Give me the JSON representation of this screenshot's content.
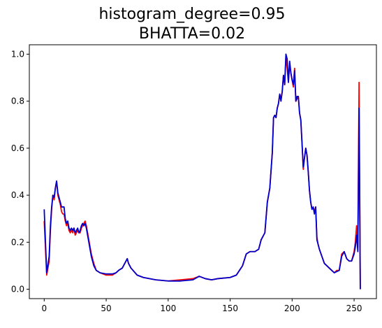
{
  "chart_data": {
    "type": "line",
    "title_lines": [
      "histogram_degree=0.95",
      "BHATTA=0.02"
    ],
    "xlabel": "",
    "ylabel": "",
    "xlim": [
      -12,
      268
    ],
    "ylim": [
      -0.04,
      1.04
    ],
    "x_ticks": [
      0,
      50,
      100,
      150,
      200,
      250
    ],
    "y_ticks": [
      0.0,
      0.2,
      0.4,
      0.6,
      0.8,
      1.0
    ],
    "x_tick_labels": [
      "0",
      "50",
      "100",
      "150",
      "200",
      "250"
    ],
    "y_tick_labels": [
      "0.0",
      "0.2",
      "0.4",
      "0.6",
      "0.8",
      "1.0"
    ],
    "grid": false,
    "legend": "none",
    "series": [
      {
        "color": "#ff0000",
        "points": [
          [
            0,
            0.29
          ],
          [
            2,
            0.06
          ],
          [
            4,
            0.12
          ],
          [
            5,
            0.25
          ],
          [
            6,
            0.34
          ],
          [
            7,
            0.4
          ],
          [
            8,
            0.38
          ],
          [
            9,
            0.43
          ],
          [
            10,
            0.46
          ],
          [
            11,
            0.4
          ],
          [
            12,
            0.38
          ],
          [
            13,
            0.36
          ],
          [
            14,
            0.33
          ],
          [
            15,
            0.32
          ],
          [
            16,
            0.32
          ],
          [
            17,
            0.29
          ],
          [
            18,
            0.27
          ],
          [
            19,
            0.28
          ],
          [
            20,
            0.25
          ],
          [
            21,
            0.24
          ],
          [
            22,
            0.25
          ],
          [
            23,
            0.24
          ],
          [
            24,
            0.26
          ],
          [
            25,
            0.23
          ],
          [
            26,
            0.24
          ],
          [
            27,
            0.25
          ],
          [
            28,
            0.24
          ],
          [
            29,
            0.24
          ],
          [
            30,
            0.26
          ],
          [
            31,
            0.27
          ],
          [
            32,
            0.28
          ],
          [
            33,
            0.29
          ],
          [
            34,
            0.27
          ],
          [
            35,
            0.24
          ],
          [
            36,
            0.21
          ],
          [
            37,
            0.18
          ],
          [
            38,
            0.15
          ],
          [
            40,
            0.11
          ],
          [
            42,
            0.08
          ],
          [
            45,
            0.07
          ],
          [
            50,
            0.06
          ],
          [
            55,
            0.06
          ],
          [
            58,
            0.07
          ],
          [
            60,
            0.08
          ],
          [
            63,
            0.09
          ],
          [
            65,
            0.11
          ],
          [
            67,
            0.13
          ],
          [
            68,
            0.11
          ],
          [
            70,
            0.09
          ],
          [
            75,
            0.06
          ],
          [
            80,
            0.05
          ],
          [
            90,
            0.04
          ],
          [
            100,
            0.035
          ],
          [
            110,
            0.04
          ],
          [
            120,
            0.045
          ],
          [
            125,
            0.055
          ],
          [
            130,
            0.045
          ],
          [
            135,
            0.04
          ],
          [
            140,
            0.045
          ],
          [
            150,
            0.05
          ],
          [
            155,
            0.06
          ],
          [
            160,
            0.1
          ],
          [
            163,
            0.15
          ],
          [
            166,
            0.16
          ],
          [
            170,
            0.16
          ],
          [
            173,
            0.17
          ],
          [
            175,
            0.21
          ],
          [
            178,
            0.24
          ],
          [
            180,
            0.37
          ],
          [
            182,
            0.43
          ],
          [
            184,
            0.58
          ],
          [
            185,
            0.73
          ],
          [
            186,
            0.74
          ],
          [
            187,
            0.73
          ],
          [
            188,
            0.77
          ],
          [
            189,
            0.79
          ],
          [
            190,
            0.83
          ],
          [
            191,
            0.81
          ],
          [
            192,
            0.84
          ],
          [
            193,
            0.91
          ],
          [
            194,
            0.87
          ],
          [
            195,
            0.99
          ],
          [
            196,
            0.94
          ],
          [
            197,
            0.88
          ],
          [
            198,
            0.96
          ],
          [
            199,
            0.92
          ],
          [
            200,
            0.89
          ],
          [
            201,
            0.86
          ],
          [
            202,
            0.94
          ],
          [
            203,
            0.8
          ],
          [
            204,
            0.81
          ],
          [
            205,
            0.82
          ],
          [
            206,
            0.75
          ],
          [
            207,
            0.72
          ],
          [
            208,
            0.62
          ],
          [
            209,
            0.51
          ],
          [
            210,
            0.56
          ],
          [
            211,
            0.6
          ],
          [
            212,
            0.57
          ],
          [
            213,
            0.5
          ],
          [
            214,
            0.42
          ],
          [
            215,
            0.37
          ],
          [
            216,
            0.34
          ],
          [
            217,
            0.35
          ],
          [
            218,
            0.33
          ],
          [
            219,
            0.35
          ],
          [
            220,
            0.22
          ],
          [
            221,
            0.19
          ],
          [
            222,
            0.17
          ],
          [
            224,
            0.14
          ],
          [
            226,
            0.11
          ],
          [
            228,
            0.1
          ],
          [
            230,
            0.09
          ],
          [
            232,
            0.08
          ],
          [
            234,
            0.07
          ],
          [
            236,
            0.08
          ],
          [
            238,
            0.08
          ],
          [
            240,
            0.15
          ],
          [
            242,
            0.16
          ],
          [
            244,
            0.13
          ],
          [
            246,
            0.12
          ],
          [
            248,
            0.12
          ],
          [
            250,
            0.16
          ],
          [
            251,
            0.2
          ],
          [
            252,
            0.27
          ],
          [
            253,
            0.18
          ],
          [
            254,
            0.88
          ],
          [
            255,
            0.0
          ]
        ]
      },
      {
        "color": "#0000cc",
        "points": [
          [
            0,
            0.34
          ],
          [
            2,
            0.07
          ],
          [
            4,
            0.14
          ],
          [
            5,
            0.27
          ],
          [
            6,
            0.35
          ],
          [
            7,
            0.4
          ],
          [
            8,
            0.39
          ],
          [
            9,
            0.43
          ],
          [
            10,
            0.46
          ],
          [
            11,
            0.41
          ],
          [
            12,
            0.39
          ],
          [
            13,
            0.37
          ],
          [
            14,
            0.35
          ],
          [
            15,
            0.35
          ],
          [
            16,
            0.35
          ],
          [
            17,
            0.3
          ],
          [
            18,
            0.28
          ],
          [
            19,
            0.29
          ],
          [
            20,
            0.26
          ],
          [
            21,
            0.25
          ],
          [
            22,
            0.26
          ],
          [
            23,
            0.25
          ],
          [
            24,
            0.26
          ],
          [
            25,
            0.24
          ],
          [
            26,
            0.25
          ],
          [
            27,
            0.26
          ],
          [
            28,
            0.24
          ],
          [
            29,
            0.25
          ],
          [
            30,
            0.27
          ],
          [
            31,
            0.28
          ],
          [
            32,
            0.27
          ],
          [
            33,
            0.28
          ],
          [
            34,
            0.26
          ],
          [
            35,
            0.23
          ],
          [
            36,
            0.2
          ],
          [
            37,
            0.17
          ],
          [
            38,
            0.14
          ],
          [
            40,
            0.1
          ],
          [
            42,
            0.08
          ],
          [
            45,
            0.07
          ],
          [
            50,
            0.065
          ],
          [
            55,
            0.065
          ],
          [
            58,
            0.07
          ],
          [
            60,
            0.08
          ],
          [
            63,
            0.09
          ],
          [
            65,
            0.11
          ],
          [
            67,
            0.13
          ],
          [
            68,
            0.11
          ],
          [
            70,
            0.09
          ],
          [
            75,
            0.06
          ],
          [
            80,
            0.05
          ],
          [
            90,
            0.04
          ],
          [
            100,
            0.035
          ],
          [
            110,
            0.035
          ],
          [
            120,
            0.04
          ],
          [
            125,
            0.055
          ],
          [
            130,
            0.045
          ],
          [
            135,
            0.04
          ],
          [
            140,
            0.045
          ],
          [
            150,
            0.05
          ],
          [
            155,
            0.06
          ],
          [
            160,
            0.1
          ],
          [
            163,
            0.15
          ],
          [
            166,
            0.16
          ],
          [
            170,
            0.16
          ],
          [
            173,
            0.17
          ],
          [
            175,
            0.21
          ],
          [
            178,
            0.24
          ],
          [
            180,
            0.37
          ],
          [
            182,
            0.43
          ],
          [
            184,
            0.58
          ],
          [
            185,
            0.73
          ],
          [
            186,
            0.74
          ],
          [
            187,
            0.73
          ],
          [
            188,
            0.77
          ],
          [
            189,
            0.79
          ],
          [
            190,
            0.83
          ],
          [
            191,
            0.8
          ],
          [
            192,
            0.84
          ],
          [
            193,
            0.91
          ],
          [
            194,
            0.87
          ],
          [
            195,
            1.0
          ],
          [
            196,
            0.98
          ],
          [
            197,
            0.88
          ],
          [
            198,
            0.97
          ],
          [
            199,
            0.92
          ],
          [
            200,
            0.89
          ],
          [
            201,
            0.87
          ],
          [
            202,
            0.93
          ],
          [
            203,
            0.8
          ],
          [
            204,
            0.82
          ],
          [
            205,
            0.82
          ],
          [
            206,
            0.75
          ],
          [
            207,
            0.72
          ],
          [
            208,
            0.62
          ],
          [
            209,
            0.52
          ],
          [
            210,
            0.56
          ],
          [
            211,
            0.6
          ],
          [
            212,
            0.57
          ],
          [
            213,
            0.5
          ],
          [
            214,
            0.42
          ],
          [
            215,
            0.37
          ],
          [
            216,
            0.34
          ],
          [
            217,
            0.35
          ],
          [
            218,
            0.32
          ],
          [
            219,
            0.35
          ],
          [
            220,
            0.21
          ],
          [
            221,
            0.19
          ],
          [
            222,
            0.17
          ],
          [
            224,
            0.14
          ],
          [
            226,
            0.11
          ],
          [
            228,
            0.1
          ],
          [
            230,
            0.09
          ],
          [
            232,
            0.08
          ],
          [
            234,
            0.07
          ],
          [
            236,
            0.075
          ],
          [
            238,
            0.08
          ],
          [
            240,
            0.14
          ],
          [
            242,
            0.16
          ],
          [
            244,
            0.13
          ],
          [
            246,
            0.12
          ],
          [
            248,
            0.12
          ],
          [
            250,
            0.15
          ],
          [
            251,
            0.18
          ],
          [
            252,
            0.23
          ],
          [
            253,
            0.16
          ],
          [
            254,
            0.77
          ],
          [
            255,
            0.0
          ]
        ]
      }
    ]
  }
}
